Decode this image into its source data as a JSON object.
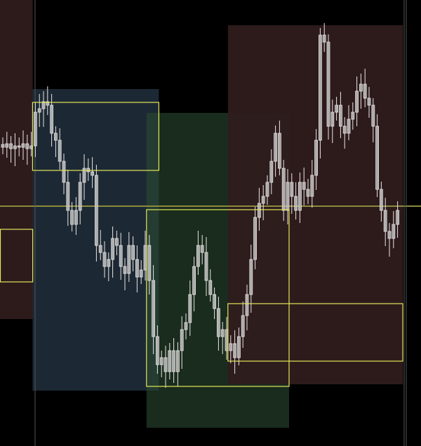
{
  "chart_data": {
    "type": "candlestick",
    "title": "",
    "xlabel": "",
    "ylabel": "",
    "grid": false,
    "colors": {
      "background": "#000000",
      "candle_outline": "#ece4e4",
      "candle_body": "#b9bdbc",
      "zone_red": "#2f1c1e",
      "zone_blue": "#1d2b37",
      "zone_green": "#2a4a30",
      "box_outline": "#e4e65a",
      "horizontal_line": "#8c8a3c",
      "vertical_line": "#555555"
    },
    "closes": [
      426,
      431,
      424,
      428,
      426,
      431,
      424,
      428,
      476,
      481,
      491,
      486,
      446,
      436,
      406,
      376,
      336,
      316,
      336,
      376,
      396,
      391,
      386,
      286,
      276,
      256,
      266,
      296,
      286,
      256,
      246,
      286,
      266,
      241,
      251,
      286,
      236,
      156,
      116,
      126,
      106,
      136,
      106,
      136,
      166,
      176,
      216,
      256,
      286,
      276,
      236,
      216,
      196,
      156,
      166,
      136,
      146,
      126,
      156,
      186,
      216,
      266,
      326,
      346,
      356,
      376,
      406,
      446,
      396,
      336,
      376,
      356,
      336,
      376,
      366,
      356,
      386,
      436,
      586,
      576,
      456,
      476,
      486,
      456,
      446,
      466,
      476,
      506,
      516,
      496,
      486,
      456,
      366,
      336,
      306,
      296,
      316,
      336
    ],
    "horizontal_level": 342,
    "zones": [
      {
        "color": "red",
        "from_index": 0,
        "to_index": 7,
        "top": 636,
        "bottom": 181
      },
      {
        "color": "blue",
        "from_index": 8,
        "to_index": 38,
        "top": 509,
        "bottom": 79
      },
      {
        "color": "green",
        "from_index": 36,
        "to_index": 70,
        "top": 475,
        "bottom": 26
      },
      {
        "color": "red",
        "from_index": 56,
        "to_index": 98,
        "top": 600,
        "bottom": 88
      }
    ],
    "boxes": [
      {
        "from_index": 8,
        "to_index": 38,
        "top": 490,
        "bottom": 393
      },
      {
        "from_index": 0,
        "to_index": 7,
        "top": 309,
        "bottom": 234
      },
      {
        "from_index": 36,
        "to_index": 70,
        "top": 337,
        "bottom": 85
      },
      {
        "from_index": 56,
        "to_index": 98,
        "top": 203,
        "bottom": 121
      }
    ]
  }
}
